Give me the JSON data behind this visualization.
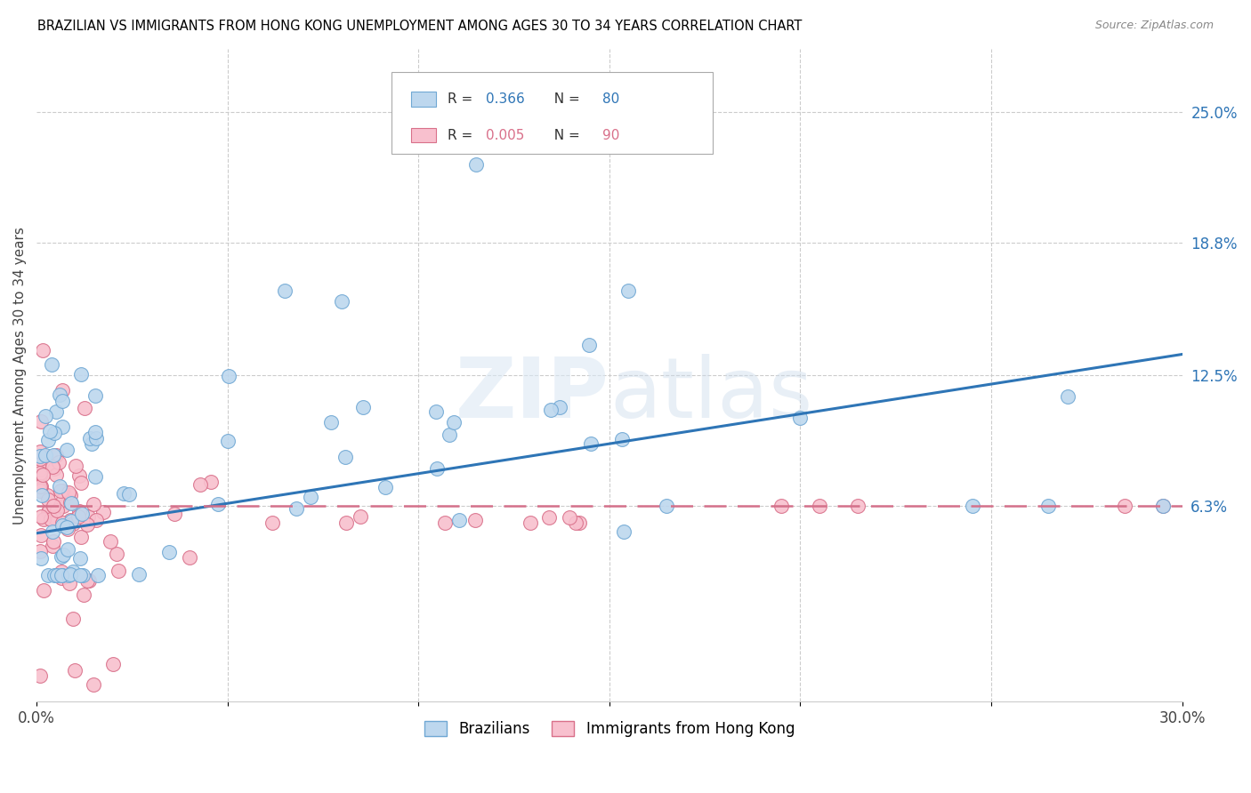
{
  "title": "BRAZILIAN VS IMMIGRANTS FROM HONG KONG UNEMPLOYMENT AMONG AGES 30 TO 34 YEARS CORRELATION CHART",
  "source": "Source: ZipAtlas.com",
  "ylabel": "Unemployment Among Ages 30 to 34 years",
  "xlim": [
    0,
    0.3
  ],
  "ylim": [
    -0.03,
    0.28
  ],
  "ytick_positions_right": [
    0.063,
    0.125,
    0.188,
    0.25
  ],
  "ytick_labels_right": [
    "6.3%",
    "12.5%",
    "18.8%",
    "25.0%"
  ],
  "brazil_color": "#bdd7ee",
  "brazil_edge_color": "#70a8d4",
  "hk_color": "#f8c0ce",
  "hk_edge_color": "#d9708a",
  "brazil_R": 0.366,
  "brazil_N": 80,
  "hk_R": 0.005,
  "hk_N": 90,
  "brazil_line_color": "#2e75b6",
  "hk_line_color": "#d4708a",
  "watermark": "ZIPatlas",
  "legend_brazil_label": "Brazilians",
  "legend_hk_label": "Immigrants from Hong Kong",
  "brazil_trend_x0": 0.0,
  "brazil_trend_y0": 0.05,
  "brazil_trend_x1": 0.3,
  "brazil_trend_y1": 0.135,
  "hk_trend_x0": 0.0,
  "hk_trend_y0": 0.063,
  "hk_trend_x1": 0.3,
  "hk_trend_y1": 0.063
}
